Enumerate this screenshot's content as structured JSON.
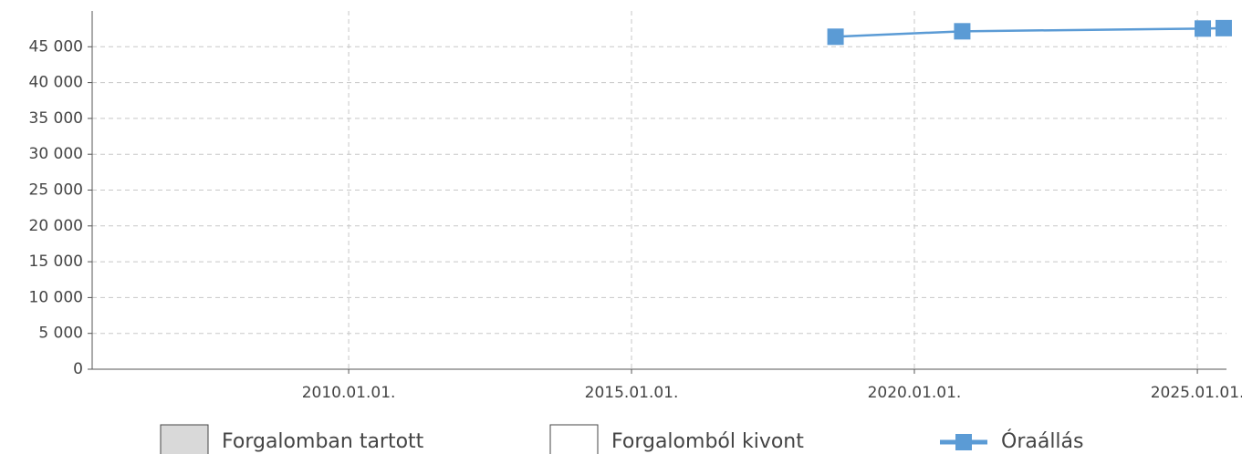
{
  "chart_data": {
    "type": "line",
    "x": [
      "2018-08-10",
      "2020-11-05",
      "2025-02-05",
      "2025-06-20"
    ],
    "series": [
      {
        "name": "Óraállás",
        "color": "#5b9bd5",
        "values": [
          46400,
          47160,
          47540,
          47600
        ]
      }
    ],
    "legend": [
      {
        "name": "Forgalomban tartott",
        "fill": "#d9d9d9"
      },
      {
        "name": "Forgalomból kivont",
        "fill": "#ffffff"
      }
    ],
    "xlim": [
      "2005-06-20",
      "2025-07-08"
    ],
    "xticks": [
      {
        "value": "2010-01-01",
        "label": "2010.01.01."
      },
      {
        "value": "2015-01-01",
        "label": "2015.01.01."
      },
      {
        "value": "2020-01-01",
        "label": "2020.01.01."
      },
      {
        "value": "2025-01-01",
        "label": "2025.01.01."
      }
    ],
    "ylim": [
      0,
      50000
    ],
    "yticks": [
      0,
      {
        "value": 5000,
        "label": "5 000"
      },
      {
        "value": 10000,
        "label": "10 000"
      },
      {
        "value": 15000,
        "label": "15 000"
      },
      {
        "value": 20000,
        "label": "20 000"
      },
      {
        "value": 25000,
        "label": "25 000"
      },
      {
        "value": 30000,
        "label": "30 000"
      },
      {
        "value": 35000,
        "label": "35 000"
      },
      {
        "value": 40000,
        "label": "40 000"
      },
      {
        "value": 45000,
        "label": "45 000"
      }
    ],
    "grid": true
  }
}
